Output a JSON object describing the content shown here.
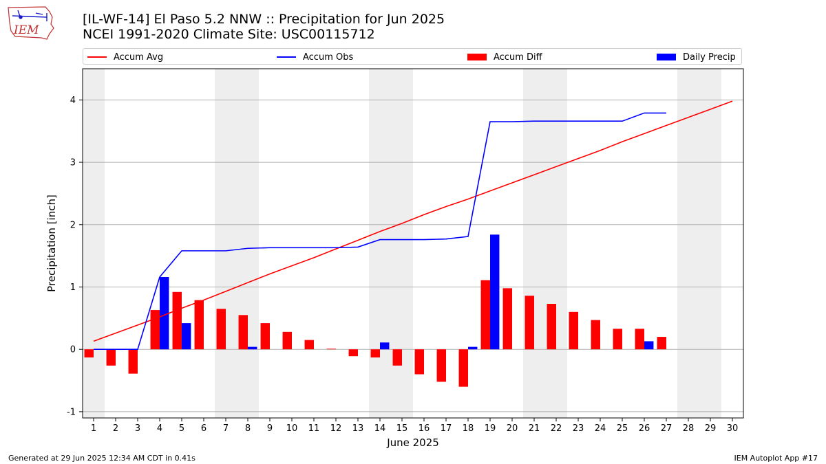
{
  "header": {
    "title_line1": "[IL-WF-14] El Paso 5.2 NNW :: Precipitation for Jun 2025",
    "title_line2": "NCEI 1991-2020 Climate Site: USC00115712"
  },
  "logo": {
    "text": "IEM",
    "icon": "iowa-state-outline-logo"
  },
  "legend": {
    "accum_avg": "Accum Avg",
    "accum_obs": "Accum Obs",
    "accum_diff": "Accum Diff",
    "daily_precip": "Daily Precip"
  },
  "footer": {
    "left": "Generated at 29 Jun 2025 12:34 AM CDT in 0.41s",
    "right": "IEM Autoplot App #17"
  },
  "colors": {
    "accum_avg": "#ff0000",
    "accum_obs": "#0000ff",
    "accum_diff": "#ff0000",
    "daily_precip": "#0000ff",
    "weekend_shade": "#eeeeee",
    "grid": "#b0b0b0"
  },
  "chart_data": {
    "type": "bar",
    "xlabel": "June 2025",
    "ylabel": "Precipitation [inch]",
    "xlim": [
      1,
      30
    ],
    "ylim": [
      -1.1,
      4.5
    ],
    "yticks": [
      -1,
      0,
      1,
      2,
      3,
      4
    ],
    "grid": "horizontal",
    "legend_position": "top",
    "days": [
      1,
      2,
      3,
      4,
      5,
      6,
      7,
      8,
      9,
      10,
      11,
      12,
      13,
      14,
      15,
      16,
      17,
      18,
      19,
      20,
      21,
      22,
      23,
      24,
      25,
      26,
      27,
      28,
      29,
      30
    ],
    "weekend_spans": [
      [
        1,
        1
      ],
      [
        7,
        8
      ],
      [
        14,
        15
      ],
      [
        21,
        22
      ],
      [
        28,
        29
      ]
    ],
    "series": [
      {
        "name": "Accum Avg",
        "type": "line",
        "values": [
          0.13,
          0.26,
          0.39,
          0.52,
          0.66,
          0.79,
          0.93,
          1.07,
          1.21,
          1.34,
          1.47,
          1.61,
          1.75,
          1.89,
          2.02,
          2.16,
          2.29,
          2.41,
          2.54,
          2.67,
          2.8,
          2.93,
          3.06,
          3.19,
          3.33,
          3.46,
          3.59,
          3.72,
          3.85,
          3.98
        ]
      },
      {
        "name": "Accum Obs",
        "type": "line",
        "values": [
          0.0,
          0.0,
          0.0,
          1.16,
          1.58,
          1.58,
          1.58,
          1.62,
          1.63,
          1.63,
          1.63,
          1.63,
          1.64,
          1.76,
          1.76,
          1.76,
          1.77,
          1.81,
          3.65,
          3.65,
          3.66,
          3.66,
          3.66,
          3.66,
          3.66,
          3.79,
          3.79
        ]
      },
      {
        "name": "Accum Diff",
        "type": "bar",
        "values": [
          -0.13,
          -0.26,
          -0.39,
          0.63,
          0.92,
          0.79,
          0.65,
          0.55,
          0.42,
          0.28,
          0.15,
          0.01,
          -0.11,
          -0.13,
          -0.26,
          -0.4,
          -0.52,
          -0.6,
          1.11,
          0.98,
          0.86,
          0.73,
          0.6,
          0.47,
          0.33,
          0.33,
          0.2
        ]
      },
      {
        "name": "Daily Precip",
        "type": "bar",
        "values": [
          0.0,
          0.0,
          0.0,
          1.16,
          0.42,
          0.0,
          0.0,
          0.04,
          0.0,
          0.0,
          0.0,
          0.0,
          0.0,
          0.11,
          0.0,
          0.0,
          0.0,
          0.04,
          1.84,
          0.0,
          0.0,
          0.0,
          0.0,
          0.0,
          0.0,
          0.13,
          0.0
        ]
      }
    ]
  }
}
